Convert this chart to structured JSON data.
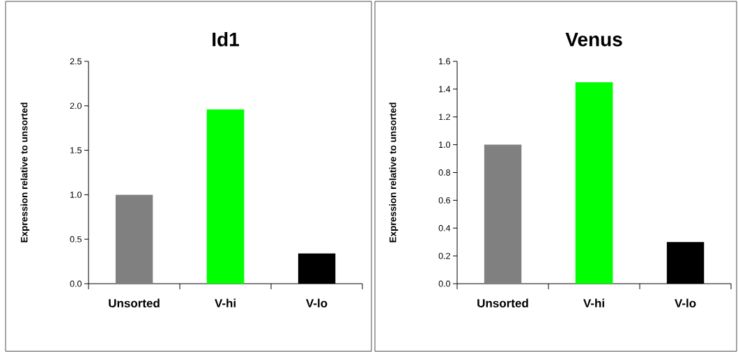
{
  "chart_data": [
    {
      "type": "bar",
      "title": "Id1",
      "ylabel": "Expression relative to unsorted",
      "categories": [
        "Unsorted",
        "V-hi",
        "V-lo"
      ],
      "values": [
        1.0,
        1.96,
        0.34
      ],
      "colors": [
        "#808080",
        "#00ff00",
        "#000000"
      ],
      "ylim": [
        0,
        2.5
      ],
      "yticks": [
        {
          "value": 0,
          "label": "0.0"
        },
        0.5,
        {
          "value": 1,
          "label": "1.0"
        },
        1.5,
        {
          "value": 2,
          "label": "2.0"
        },
        2.5
      ]
    },
    {
      "type": "bar",
      "title": "Venus",
      "ylabel": "Expression relative to unsorted",
      "categories": [
        "Unsorted",
        "V-hi",
        "V-lo"
      ],
      "values": [
        1.0,
        1.45,
        0.3
      ],
      "colors": [
        "#808080",
        "#00ff00",
        "#000000"
      ],
      "ylim": [
        0,
        1.6
      ],
      "yticks": [
        {
          "value": 0,
          "label": "0.0"
        },
        0.2,
        0.4,
        0.6,
        0.8,
        {
          "value": 1,
          "label": "1.0"
        },
        1.2,
        1.4,
        1.6
      ]
    }
  ]
}
